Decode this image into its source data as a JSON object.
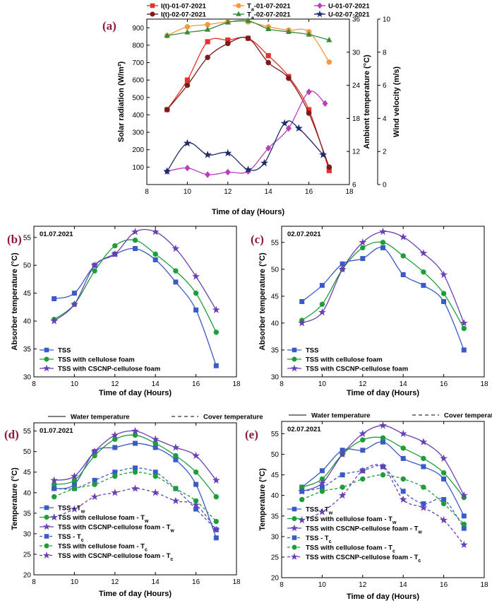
{
  "panels": {
    "a": "(a)",
    "b": "(b)",
    "c": "(c)",
    "d": "(d)",
    "e": "(e)"
  },
  "chart_data": [
    {
      "id": "a",
      "type": "line",
      "xlabel": "Time of day (Hours)",
      "xlim": [
        8,
        18
      ],
      "xticks": [
        8,
        10,
        12,
        14,
        16,
        18
      ],
      "axes": [
        {
          "key": "solar",
          "label": "Solar radiation (W/m²)",
          "ylim": [
            0,
            950
          ],
          "ticks": [
            100,
            200,
            300,
            400,
            500,
            600,
            700,
            800,
            900
          ]
        },
        {
          "key": "amb",
          "label": "Ambient temperature (°C)",
          "ylim": [
            6,
            36
          ],
          "ticks": [
            6,
            12,
            18,
            24,
            30,
            36
          ]
        },
        {
          "key": "wind",
          "label": "Wind velocity (m/s)",
          "ylim": [
            0,
            10
          ],
          "ticks": [
            0,
            2,
            4,
            6,
            8,
            10
          ]
        }
      ],
      "series": [
        {
          "name": "I(t)-01-07-2021",
          "axis": "solar",
          "color": "#E8302F",
          "marker": "square",
          "dash": false,
          "x": [
            9,
            10,
            11,
            12,
            13,
            14,
            15,
            16,
            17
          ],
          "y": [
            430,
            600,
            820,
            830,
            840,
            740,
            620,
            430,
            80
          ]
        },
        {
          "name": "I(t)-02-07-2021",
          "axis": "solar",
          "color": "#7B1C1C",
          "marker": "circle",
          "dash": false,
          "x": [
            9,
            10,
            11,
            12,
            13,
            14,
            15,
            16,
            17
          ],
          "y": [
            430,
            570,
            730,
            810,
            840,
            700,
            610,
            410,
            100
          ]
        },
        {
          "name": "Ta-01-07-2021",
          "axis": "amb",
          "color": "#F39A3C",
          "marker": "circle",
          "dash": false,
          "x": [
            9,
            10,
            11,
            12,
            13,
            14,
            15,
            16,
            17
          ],
          "y": [
            33.0,
            34.6,
            35.0,
            35.5,
            35.5,
            34.6,
            34.0,
            33.7,
            28.2
          ]
        },
        {
          "name": "Ta-02-07-2021",
          "axis": "amb",
          "color": "#3A8A3A",
          "marker": "triangle",
          "dash": false,
          "x": [
            9,
            10,
            11,
            12,
            13,
            14,
            15,
            16,
            17
          ],
          "y": [
            33.0,
            33.6,
            34.1,
            35.4,
            35.7,
            34.2,
            33.7,
            33.2,
            32.2
          ]
        },
        {
          "name": "U-01-07-2021",
          "axis": "wind",
          "color": "#B93EB9",
          "marker": "diamond",
          "dash": false,
          "x": [
            9,
            10,
            11,
            12,
            13,
            14,
            15,
            16,
            16.8
          ],
          "y": [
            0.8,
            1.0,
            0.6,
            0.75,
            0.8,
            2.2,
            3.4,
            5.6,
            4.9
          ]
        },
        {
          "name": "U-02-07-2021",
          "axis": "wind",
          "color": "#1F2A6B",
          "marker": "star",
          "dash": false,
          "x": [
            9,
            10,
            11,
            12,
            13,
            13.8,
            14.8,
            15.5,
            16.7
          ],
          "y": [
            0.8,
            2.5,
            1.8,
            1.9,
            0.9,
            1.3,
            3.7,
            3.4,
            1.8
          ]
        }
      ],
      "legend": [
        [
          "I(t)-01-07-2021",
          "Ta-01-07-2021",
          "U-01-07-2021"
        ],
        [
          "I(t)-02-07-2021",
          "Ta-02-07-2021",
          "U-02-07-2021"
        ]
      ]
    },
    {
      "id": "b",
      "type": "line",
      "date": "01.07.2021",
      "xlabel": "Time of day (Hours)",
      "ylabel": "Absorber temperature (°C)",
      "xlim": [
        8,
        18
      ],
      "ylim": [
        30,
        57
      ],
      "xticks": [
        8,
        10,
        12,
        14,
        16,
        18
      ],
      "yticks": [
        30,
        35,
        40,
        45,
        50,
        55
      ],
      "series": [
        {
          "name": "TSS",
          "color": "#3A5BC7",
          "marker": "square",
          "dash": false,
          "x": [
            9,
            10,
            11,
            12,
            13,
            14,
            15,
            16,
            17
          ],
          "y": [
            44,
            45,
            50,
            52,
            53,
            51,
            47,
            42,
            32
          ]
        },
        {
          "name": "TSS with cellulose foam",
          "color": "#1E9E3A",
          "marker": "circle",
          "dash": false,
          "x": [
            9,
            10,
            11,
            12,
            13,
            14,
            15,
            16,
            17
          ],
          "y": [
            40.3,
            43,
            49,
            53.5,
            54.5,
            52,
            49,
            45,
            38
          ]
        },
        {
          "name": "TSS with CSCNP-cellulose foam",
          "color": "#6A3FB5",
          "marker": "star",
          "dash": false,
          "x": [
            9,
            10,
            11,
            12,
            13,
            14,
            15,
            16,
            17
          ],
          "y": [
            40,
            43,
            50,
            52,
            56,
            56,
            53,
            48,
            42
          ]
        }
      ]
    },
    {
      "id": "c",
      "type": "line",
      "date": "02.07.2021",
      "xlabel": "Time of day (Hours)",
      "ylabel": "Absorber temperature (°C)",
      "xlim": [
        8,
        18
      ],
      "ylim": [
        30,
        58
      ],
      "xticks": [
        8,
        10,
        12,
        14,
        16,
        18
      ],
      "yticks": [
        30,
        35,
        40,
        45,
        50,
        55
      ],
      "series": [
        {
          "name": "TSS",
          "color": "#3A5BC7",
          "marker": "square",
          "dash": false,
          "x": [
            9,
            10,
            11,
            12,
            13,
            14,
            15,
            16,
            17
          ],
          "y": [
            44,
            47,
            51,
            52,
            54,
            49,
            47,
            44,
            35
          ]
        },
        {
          "name": "TSS with cellulose foam",
          "color": "#1E9E3A",
          "marker": "circle",
          "dash": false,
          "x": [
            9,
            10,
            11,
            12,
            13,
            14,
            15,
            16,
            17
          ],
          "y": [
            40.5,
            43.5,
            50,
            54,
            55,
            52.5,
            49.5,
            45.5,
            39
          ]
        },
        {
          "name": "TSS with CSCNP-cellulose foam",
          "color": "#6A3FB5",
          "marker": "star",
          "dash": false,
          "x": [
            9,
            10,
            11,
            12,
            13,
            14,
            15,
            16,
            17
          ],
          "y": [
            40,
            42,
            50,
            55,
            57,
            56,
            53,
            49,
            40
          ]
        }
      ]
    },
    {
      "id": "d",
      "type": "line",
      "date": "01.07.2021",
      "header": {
        "solid": "Water temperature",
        "dashed": "Cover temperature"
      },
      "xlabel": "Time of day (Hours)",
      "ylabel": "Temperature (°C)",
      "xlim": [
        8,
        18
      ],
      "ylim": [
        20,
        57
      ],
      "xticks": [
        8,
        10,
        12,
        14,
        16,
        18
      ],
      "yticks": [
        20,
        25,
        30,
        35,
        40,
        45,
        50,
        55
      ],
      "series": [
        {
          "name": "TSS - Tw",
          "color": "#3A5BC7",
          "marker": "square",
          "dash": false,
          "x": [
            9,
            10,
            11,
            12,
            13,
            14,
            15,
            16,
            17
          ],
          "y": [
            41,
            42,
            50,
            51,
            52,
            51,
            48,
            42,
            29
          ]
        },
        {
          "name": "TSS with cellulose foam - Tw",
          "color": "#1E9E3A",
          "marker": "circle",
          "dash": false,
          "x": [
            9,
            10,
            11,
            12,
            13,
            14,
            15,
            16,
            17
          ],
          "y": [
            42,
            43,
            49,
            53,
            54,
            52,
            49,
            45,
            39
          ]
        },
        {
          "name": "TSS with CSCNP-cellulose foam - Tw",
          "color": "#6A3FB5",
          "marker": "star",
          "dash": false,
          "x": [
            9,
            10,
            11,
            12,
            13,
            14,
            15,
            16,
            17
          ],
          "y": [
            43,
            44,
            50,
            54,
            55,
            53,
            51,
            49,
            43
          ]
        },
        {
          "name": "TSS - Tc",
          "color": "#3A5BC7",
          "marker": "square",
          "dash": true,
          "x": [
            9,
            10,
            11,
            12,
            13,
            14,
            15,
            16,
            17
          ],
          "y": [
            41,
            41,
            43,
            45,
            46,
            45,
            41,
            36,
            31
          ]
        },
        {
          "name": "TSS with cellulose foam - Tc",
          "color": "#1E9E3A",
          "marker": "circle",
          "dash": true,
          "x": [
            9,
            10,
            11,
            12,
            13,
            14,
            15,
            16,
            17
          ],
          "y": [
            39,
            41,
            42,
            44,
            45,
            44,
            41,
            38,
            33
          ]
        },
        {
          "name": "TSS with CSCNP-cellulose foam - Tc",
          "color": "#6A3FB5",
          "marker": "star",
          "dash": true,
          "x": [
            9,
            10,
            11,
            12,
            13,
            14,
            15,
            16,
            17
          ],
          "y": [
            34,
            36,
            39,
            40,
            41,
            40,
            38,
            37,
            31
          ]
        }
      ]
    },
    {
      "id": "e",
      "type": "line",
      "date": "02.07.2021",
      "header": {
        "solid": "Water temperature",
        "dashed": "Cover temperature"
      },
      "xlabel": "Time of day (Hours)",
      "ylabel": "Temperature (°C)",
      "xlim": [
        8,
        18
      ],
      "ylim": [
        20,
        58
      ],
      "xticks": [
        8,
        10,
        12,
        14,
        16,
        18
      ],
      "yticks": [
        20,
        25,
        30,
        35,
        40,
        45,
        50,
        55
      ],
      "series": [
        {
          "name": "TSS - Tw",
          "color": "#3A5BC7",
          "marker": "square",
          "dash": false,
          "x": [
            9,
            10,
            11,
            12,
            13,
            14,
            15,
            16,
            17
          ],
          "y": [
            42,
            46,
            51,
            51,
            53,
            49,
            47,
            44,
            35
          ]
        },
        {
          "name": "TSS with cellulose foam - Tw",
          "color": "#1E9E3A",
          "marker": "circle",
          "dash": false,
          "x": [
            9,
            10,
            11,
            12,
            13,
            14,
            15,
            16,
            17
          ],
          "y": [
            42,
            44,
            50,
            53.5,
            54,
            51.5,
            49,
            45.5,
            39.5
          ]
        },
        {
          "name": "TSS with CSCNP-cellulose foam - Tw",
          "color": "#6A3FB5",
          "marker": "star",
          "dash": false,
          "x": [
            9,
            10,
            11,
            12,
            13,
            14,
            15,
            16,
            17
          ],
          "y": [
            41,
            43,
            50,
            55,
            57,
            55,
            53,
            49,
            40
          ]
        },
        {
          "name": "TSS - Tc",
          "color": "#3A5BC7",
          "marker": "square",
          "dash": true,
          "x": [
            9,
            10,
            11,
            12,
            13,
            14,
            15,
            16,
            17
          ],
          "y": [
            41,
            42,
            45,
            46,
            47,
            41,
            38,
            39,
            32
          ]
        },
        {
          "name": "TSS with cellulose foam - Tc",
          "color": "#1E9E3A",
          "marker": "circle",
          "dash": true,
          "x": [
            9,
            10,
            11,
            12,
            13,
            14,
            15,
            16,
            17
          ],
          "y": [
            39,
            41,
            42,
            44,
            45,
            44,
            42,
            38,
            33
          ]
        },
        {
          "name": "TSS with CSCNP-cellulose foam - Tc",
          "color": "#6A3FB5",
          "marker": "star",
          "dash": true,
          "x": [
            9,
            10,
            11,
            12,
            13,
            14,
            15,
            16,
            17
          ],
          "y": [
            34,
            36,
            40,
            46,
            47,
            39,
            37,
            34,
            28
          ]
        }
      ]
    }
  ]
}
